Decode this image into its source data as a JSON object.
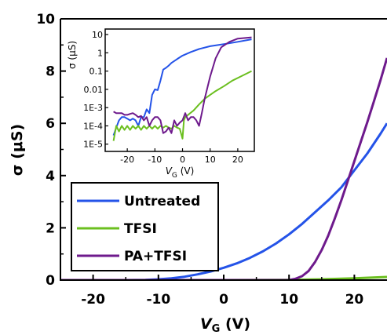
{
  "chart_data": [
    {
      "type": "line",
      "panel": "main",
      "xlabel": "V",
      "xlabel_sub": "G",
      "xlabel_unit": " (V)",
      "ylabel": "σ (μS)",
      "xlim": [
        -25,
        25
      ],
      "ylim": [
        0,
        10
      ],
      "xticks": [
        -20,
        -10,
        0,
        10,
        20
      ],
      "yticks": [
        0,
        2,
        4,
        6,
        8,
        10
      ],
      "xtick_labels": [
        "-20",
        "-10",
        "0",
        "10",
        "20"
      ],
      "ytick_labels": [
        "0",
        "2",
        "4",
        "6",
        "8",
        "10"
      ],
      "legend_position": "bottom-left",
      "grid": false,
      "series": [
        {
          "name": "Untreated",
          "color": "#2453e8",
          "x": [
            -25,
            -15,
            -12,
            -10,
            -8,
            -6,
            -4,
            -2,
            0,
            2,
            4,
            6,
            8,
            10,
            12,
            14,
            16,
            18,
            20,
            22,
            24,
            25
          ],
          "y": [
            0,
            0,
            0.01,
            0.03,
            0.07,
            0.13,
            0.22,
            0.33,
            0.47,
            0.64,
            0.85,
            1.1,
            1.4,
            1.75,
            2.15,
            2.6,
            3.05,
            3.55,
            4.2,
            4.85,
            5.6,
            6.0
          ]
        },
        {
          "name": "TFSI",
          "color": "#6bbf1f",
          "x": [
            -25,
            0,
            10,
            15,
            20,
            25
          ],
          "y": [
            0,
            0,
            0.01,
            0.03,
            0.07,
            0.12
          ]
        },
        {
          "name": "PA+TFSI",
          "color": "#6e1a8c",
          "x": [
            -25,
            10,
            11,
            12,
            13,
            14,
            15,
            16,
            17,
            18,
            19,
            20,
            21,
            22,
            23,
            24,
            25
          ],
          "y": [
            0,
            0,
            0.05,
            0.15,
            0.35,
            0.7,
            1.15,
            1.7,
            2.35,
            3.05,
            3.8,
            4.55,
            5.3,
            6.05,
            6.85,
            7.65,
            8.5
          ]
        }
      ]
    },
    {
      "type": "line",
      "panel": "inset",
      "log_y": true,
      "xlabel": "V",
      "xlabel_sub": "G",
      "xlabel_unit": " (V)",
      "ylabel": "σ (μS)",
      "xlim": [
        -28,
        26
      ],
      "ylim": [
        4e-06,
        20
      ],
      "xticks": [
        -20,
        -10,
        0,
        10,
        20
      ],
      "xtick_labels": [
        "-20",
        "-10",
        "0",
        "10",
        "20"
      ],
      "yticks": [
        1e-05,
        0.0001,
        0.001,
        0.01,
        0.1,
        1,
        10
      ],
      "ytick_labels": [
        "1E-5",
        "1E-4",
        "1E-3",
        "0.01",
        "0.1",
        "1",
        "10"
      ],
      "series": [
        {
          "name": "Untreated",
          "color": "#2453e8",
          "x": [
            -25,
            -24,
            -23,
            -22,
            -21,
            -20,
            -19,
            -18,
            -17,
            -16,
            -15,
            -14,
            -13,
            -12,
            -11,
            -10,
            -9,
            -8,
            -7,
            -6,
            -5,
            -4,
            -2,
            0,
            3,
            6,
            10,
            15,
            20,
            25
          ],
          "y": [
            3e-05,
            8e-05,
            0.0002,
            0.0003,
            0.0003,
            0.00025,
            0.0002,
            0.00025,
            0.0002,
            0.0001,
            0.0003,
            0.0003,
            0.0008,
            0.0005,
            0.005,
            0.01,
            0.009,
            0.03,
            0.12,
            0.15,
            0.2,
            0.28,
            0.45,
            0.7,
            1.1,
            1.6,
            2.3,
            3.0,
            4.0,
            5.5
          ]
        },
        {
          "name": "TFSI",
          "color": "#6bbf1f",
          "x": [
            -25,
            -24,
            -23,
            -22,
            -21,
            -20,
            -19,
            -18,
            -17,
            -16,
            -15,
            -14,
            -13,
            -12,
            -11,
            -10,
            -9,
            -8,
            -7,
            -6,
            -5,
            -4,
            -3,
            -2,
            -1,
            0,
            0.5,
            1,
            2,
            4,
            6,
            8,
            10,
            12,
            15,
            18,
            21,
            25
          ],
          "y": [
            1.5e-05,
            0.0001,
            5e-05,
            0.0001,
            6e-05,
            0.0001,
            6e-05,
            0.0001,
            7e-05,
            0.0001,
            6e-05,
            0.0001,
            7e-05,
            0.0001,
            7e-05,
            0.0001,
            7e-05,
            0.0001,
            8e-05,
            0.0001,
            8e-05,
            7e-05,
            0.0001,
            8e-05,
            7e-05,
            2e-05,
            0.0002,
            0.0003,
            0.0004,
            0.0007,
            0.0015,
            0.003,
            0.005,
            0.008,
            0.015,
            0.03,
            0.05,
            0.1
          ]
        },
        {
          "name": "PA+TFSI",
          "color": "#6e1a8c",
          "x": [
            -25,
            -24,
            -23,
            -22,
            -21,
            -20,
            -19,
            -18,
            -17,
            -16,
            -15,
            -14,
            -13,
            -12,
            -11,
            -10,
            -9,
            -8,
            -7,
            -6,
            -5,
            -4,
            -3,
            -2,
            -1,
            0,
            1,
            2,
            3,
            4,
            5,
            6,
            7,
            8,
            10,
            12,
            14,
            17,
            20,
            25
          ],
          "y": [
            0.0006,
            0.0005,
            0.0005,
            0.0005,
            0.0004,
            0.0004,
            0.00045,
            0.0005,
            0.0004,
            0.0003,
            0.00035,
            0.0002,
            0.0003,
            0.0001,
            0.0002,
            0.0003,
            0.0003,
            0.0002,
            4e-05,
            5e-05,
            8e-05,
            4e-05,
            0.0002,
            0.0001,
            0.00015,
            0.0002,
            0.0005,
            0.0002,
            0.0003,
            0.0003,
            0.0002,
            0.0001,
            0.0005,
            0.003,
            0.05,
            0.5,
            2.0,
            4.0,
            6.0,
            7.0
          ]
        }
      ]
    }
  ]
}
